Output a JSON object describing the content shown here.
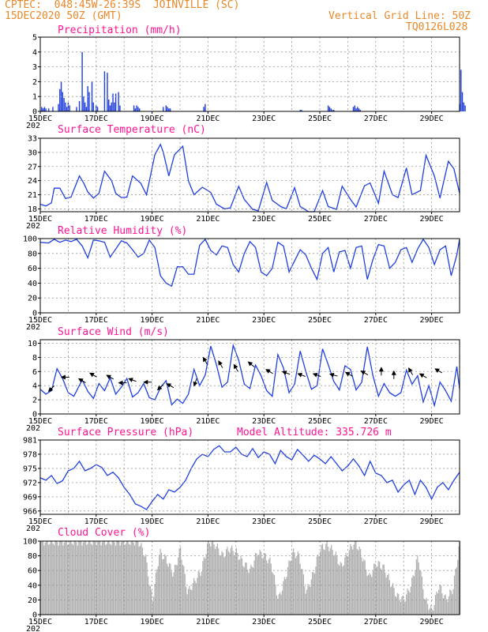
{
  "header": {
    "line1_left": "CPTEC:  048:45W-26:39S  JOINVILLE (SC)",
    "line2_left": "15DEC2020 50Z (GMT)",
    "line1_right": "Vertical Grid Line: 50Z",
    "line2_right": "TQ0126L028"
  },
  "x_axis": {
    "labels": [
      "15DEC",
      "17DEC",
      "19DEC",
      "21DEC",
      "23DEC",
      "25DEC",
      "27DEC",
      "29DEC"
    ],
    "year_fragment": "202"
  },
  "colors": {
    "line": "#1f3fe0",
    "bar": "#1f3fe0",
    "cloud": "#b0b0b0",
    "title": "#ff1493",
    "header": "#e8882a"
  },
  "chart_data": [
    {
      "id": "precip",
      "type": "bar",
      "title": "Precipitation (mm/h)",
      "ylim": [
        0,
        5
      ],
      "yticks": [
        0,
        1,
        2,
        3,
        4,
        5
      ],
      "x_range_days": [
        0,
        15
      ],
      "x_points_days": [
        0.05,
        0.1,
        0.15,
        0.2,
        0.3,
        0.45,
        0.65,
        0.7,
        0.75,
        0.8,
        0.85,
        0.9,
        0.95,
        1.0,
        1.05,
        1.3,
        1.4,
        1.5,
        1.55,
        1.6,
        1.65,
        1.7,
        1.75,
        1.85,
        1.9,
        2.0,
        2.05,
        2.3,
        2.4,
        2.45,
        2.5,
        2.55,
        2.6,
        2.65,
        2.7,
        2.8,
        2.85,
        3.35,
        3.4,
        3.45,
        3.5,
        3.55,
        4.4,
        4.5,
        4.55,
        4.6,
        4.65,
        5.85,
        5.9,
        9.3,
        9.35,
        10.3,
        10.35,
        10.4,
        10.45,
        10.5,
        11.2,
        11.25,
        11.3,
        11.35,
        11.4,
        11.45,
        15.0,
        15.05,
        15.1,
        15.15,
        15.2
      ],
      "values": [
        0.3,
        0.2,
        0.3,
        0.2,
        0.2,
        0.3,
        0.5,
        1.5,
        2.0,
        1.3,
        0.9,
        0.6,
        0.3,
        0.6,
        0.4,
        0.3,
        0.7,
        4.0,
        1.0,
        0.6,
        0.3,
        1.7,
        1.3,
        2.0,
        0.6,
        0.4,
        0.3,
        2.7,
        2.6,
        0.8,
        0.4,
        0.6,
        1.2,
        0.6,
        1.2,
        1.3,
        0.4,
        0.4,
        0.2,
        0.4,
        0.3,
        0.2,
        0.3,
        0.4,
        0.3,
        0.2,
        0.2,
        0.3,
        0.5,
        0.1,
        0.1,
        0.4,
        0.3,
        0.2,
        0.1,
        0.1,
        0.3,
        0.4,
        0.2,
        0.3,
        0.2,
        0.1,
        0.5,
        2.8,
        1.3,
        0.6,
        0.4
      ]
    },
    {
      "id": "temp",
      "type": "line",
      "title": "Surface Temperature (nC)",
      "ylim": [
        17.4,
        33
      ],
      "yticks": [
        18,
        21,
        24,
        27,
        30,
        33
      ],
      "x_range_days": [
        0,
        15
      ],
      "x": [
        0,
        0.2,
        0.4,
        0.5,
        0.7,
        0.9,
        1.1,
        1.4,
        1.55,
        1.7,
        1.9,
        2.1,
        2.3,
        2.55,
        2.7,
        2.9,
        3.1,
        3.3,
        3.6,
        3.8,
        4.1,
        4.3,
        4.4,
        4.6,
        4.8,
        5.1,
        5.3,
        5.5,
        5.8,
        6.1,
        6.3,
        6.6,
        6.8,
        7.1,
        7.3,
        7.6,
        7.8,
        8.1,
        8.3,
        8.6,
        8.8,
        9.1,
        9.3,
        9.6,
        9.8,
        10.1,
        10.3,
        10.6,
        10.8,
        11.1,
        11.3,
        11.6,
        11.8,
        12.1,
        12.3,
        12.6,
        12.8,
        13.1,
        13.3,
        13.6,
        13.8,
        14.1,
        14.3,
        14.6,
        14.8,
        15.0
      ],
      "values": [
        19.0,
        18.6,
        19.3,
        22.4,
        22.4,
        20.2,
        20.5,
        25.0,
        23.5,
        21.6,
        20.3,
        21.3,
        26.0,
        24.0,
        21.3,
        20.4,
        20.5,
        25.0,
        23.4,
        21.0,
        29.5,
        31.7,
        30.0,
        25.0,
        29.5,
        31.3,
        24.0,
        21.0,
        22.6,
        21.5,
        19.0,
        18.0,
        18.2,
        22.8,
        20.0,
        17.9,
        17.6,
        23.6,
        19.8,
        18.5,
        18.0,
        22.5,
        18.5,
        17.4,
        17.4,
        21.9,
        18.5,
        17.9,
        22.8,
        20.0,
        18.4,
        22.9,
        23.5,
        19.2,
        26.0,
        21.0,
        20.4,
        26.7,
        21.0,
        21.9,
        29.4,
        25.0,
        20.3,
        28.1,
        26.5,
        21.3
      ]
    },
    {
      "id": "rh",
      "type": "line",
      "title": "Relative Humidity (%)",
      "ylim": [
        0,
        100
      ],
      "yticks": [
        0,
        20,
        40,
        60,
        80,
        100
      ],
      "x_range_days": [
        0,
        15
      ],
      "x": [
        0,
        0.3,
        0.5,
        0.7,
        0.9,
        1.1,
        1.3,
        1.5,
        1.7,
        1.9,
        2.1,
        2.3,
        2.5,
        2.7,
        2.9,
        3.1,
        3.3,
        3.5,
        3.7,
        3.9,
        4.1,
        4.3,
        4.5,
        4.7,
        4.9,
        5.1,
        5.3,
        5.5,
        5.7,
        5.9,
        6.1,
        6.3,
        6.5,
        6.7,
        6.9,
        7.1,
        7.3,
        7.5,
        7.7,
        7.9,
        8.1,
        8.3,
        8.5,
        8.7,
        8.9,
        9.1,
        9.3,
        9.5,
        9.7,
        9.9,
        10.1,
        10.3,
        10.5,
        10.7,
        10.9,
        11.1,
        11.3,
        11.5,
        11.7,
        11.9,
        12.1,
        12.3,
        12.5,
        12.7,
        12.9,
        13.1,
        13.3,
        13.5,
        13.7,
        13.9,
        14.1,
        14.3,
        14.5,
        14.7,
        14.9,
        15.0
      ],
      "values": [
        95,
        94,
        99,
        95,
        98,
        96,
        99,
        90,
        74,
        98,
        97,
        95,
        75,
        86,
        97,
        94,
        85,
        75,
        80,
        98,
        88,
        50,
        40,
        36,
        62,
        62,
        52,
        52,
        91,
        99,
        84,
        78,
        90,
        88,
        65,
        55,
        80,
        96,
        88,
        55,
        50,
        60,
        95,
        90,
        55,
        70,
        85,
        78,
        60,
        45,
        80,
        88,
        55,
        82,
        84,
        60,
        88,
        90,
        45,
        72,
        92,
        90,
        60,
        68,
        85,
        88,
        68,
        86,
        99,
        88,
        65,
        85,
        90,
        50,
        78,
        99
      ]
    },
    {
      "id": "wind",
      "type": "line",
      "title": "Surface Wind (m/s)",
      "ylim": [
        0,
        10.5
      ],
      "yticks": [
        0,
        2,
        4,
        6,
        8,
        10
      ],
      "x_range_days": [
        0,
        15
      ],
      "x": [
        0,
        0.2,
        0.4,
        0.6,
        0.8,
        1.0,
        1.2,
        1.5,
        1.7,
        1.9,
        2.1,
        2.3,
        2.5,
        2.7,
        2.9,
        3.1,
        3.3,
        3.5,
        3.7,
        3.9,
        4.1,
        4.3,
        4.5,
        4.7,
        4.9,
        5.1,
        5.3,
        5.5,
        5.7,
        5.9,
        6.1,
        6.3,
        6.5,
        6.7,
        6.9,
        7.1,
        7.3,
        7.5,
        7.7,
        7.9,
        8.1,
        8.3,
        8.5,
        8.7,
        8.9,
        9.1,
        9.3,
        9.5,
        9.7,
        9.9,
        10.1,
        10.3,
        10.5,
        10.7,
        10.9,
        11.1,
        11.3,
        11.5,
        11.7,
        11.9,
        12.1,
        12.3,
        12.5,
        12.7,
        12.9,
        13.1,
        13.3,
        13.5,
        13.7,
        13.9,
        14.1,
        14.3,
        14.5,
        14.7,
        14.9,
        15.0
      ],
      "values": [
        3.5,
        2.8,
        3.3,
        6.4,
        5.0,
        3.0,
        2.5,
        4.8,
        3.2,
        2.2,
        4.3,
        3.3,
        5.1,
        2.8,
        3.8,
        5.0,
        2.4,
        3.0,
        4.3,
        2.3,
        2.0,
        3.7,
        4.7,
        1.3,
        2.1,
        1.5,
        2.8,
        6.3,
        4.0,
        5.5,
        9.6,
        7.0,
        3.8,
        4.5,
        9.7,
        7.6,
        4.2,
        3.6,
        6.9,
        5.4,
        3.3,
        2.5,
        8.4,
        6.5,
        3.0,
        4.2,
        8.9,
        6.0,
        3.5,
        4.0,
        9.2,
        7.0,
        4.6,
        3.4,
        6.8,
        6.3,
        3.4,
        4.5,
        9.5,
        5.4,
        2.5,
        4.3,
        3.0,
        2.5,
        3.0,
        6.2,
        4.2,
        5.4,
        1.7,
        4.0,
        1.2,
        4.5,
        3.3,
        1.8,
        6.7,
        3.5
      ],
      "arrows": [
        {
          "day": 0.4,
          "speed": 3.6,
          "dir_deg": 225
        },
        {
          "day": 0.9,
          "speed": 5.2,
          "dir_deg": 270
        },
        {
          "day": 1.5,
          "speed": 4.7,
          "dir_deg": 300
        },
        {
          "day": 1.9,
          "speed": 5.5,
          "dir_deg": 300
        },
        {
          "day": 2.5,
          "speed": 5.2,
          "dir_deg": 300
        },
        {
          "day": 2.95,
          "speed": 4.4,
          "dir_deg": 270
        },
        {
          "day": 3.3,
          "speed": 4.8,
          "dir_deg": 290
        },
        {
          "day": 3.85,
          "speed": 4.5,
          "dir_deg": 270
        },
        {
          "day": 4.3,
          "speed": 3.8,
          "dir_deg": 225
        },
        {
          "day": 4.65,
          "speed": 4.0,
          "dir_deg": 300
        },
        {
          "day": 5.55,
          "speed": 4.5,
          "dir_deg": 200
        },
        {
          "day": 5.9,
          "speed": 7.5,
          "dir_deg": 330
        },
        {
          "day": 6.45,
          "speed": 7.0,
          "dir_deg": 330
        },
        {
          "day": 7.0,
          "speed": 6.5,
          "dir_deg": 330
        },
        {
          "day": 7.55,
          "speed": 7.0,
          "dir_deg": 310
        },
        {
          "day": 8.2,
          "speed": 6.0,
          "dir_deg": 300
        },
        {
          "day": 8.8,
          "speed": 5.8,
          "dir_deg": 290
        },
        {
          "day": 9.35,
          "speed": 5.5,
          "dir_deg": 290
        },
        {
          "day": 9.9,
          "speed": 5.5,
          "dir_deg": 290
        },
        {
          "day": 10.5,
          "speed": 5.5,
          "dir_deg": 285
        },
        {
          "day": 11.05,
          "speed": 5.6,
          "dir_deg": 300
        },
        {
          "day": 11.6,
          "speed": 5.8,
          "dir_deg": 300
        },
        {
          "day": 12.2,
          "speed": 6.0,
          "dir_deg": 0
        },
        {
          "day": 12.65,
          "speed": 5.5,
          "dir_deg": 0
        },
        {
          "day": 13.25,
          "speed": 6.0,
          "dir_deg": 330
        },
        {
          "day": 13.7,
          "speed": 5.4,
          "dir_deg": 300
        },
        {
          "day": 14.25,
          "speed": 6.1,
          "dir_deg": 300
        }
      ]
    },
    {
      "id": "press",
      "type": "line",
      "title": "Surface Pressure (hPa)",
      "annotation": "Model Altitude: 335.726 m",
      "ylim": [
        965.3,
        981
      ],
      "yticks": [
        966,
        969,
        972,
        975,
        978,
        981
      ],
      "x_range_days": [
        0,
        15
      ],
      "x": [
        0,
        0.2,
        0.4,
        0.6,
        0.8,
        1.0,
        1.2,
        1.4,
        1.6,
        1.8,
        2.0,
        2.2,
        2.4,
        2.6,
        2.8,
        3.0,
        3.2,
        3.4,
        3.6,
        3.8,
        4.0,
        4.2,
        4.4,
        4.6,
        4.8,
        5.0,
        5.2,
        5.4,
        5.6,
        5.8,
        6.0,
        6.2,
        6.4,
        6.6,
        6.8,
        7.0,
        7.2,
        7.4,
        7.6,
        7.8,
        8.0,
        8.2,
        8.4,
        8.6,
        8.8,
        9.0,
        9.2,
        9.4,
        9.6,
        9.8,
        10.0,
        10.2,
        10.4,
        10.6,
        10.8,
        11.0,
        11.2,
        11.4,
        11.6,
        11.8,
        12.0,
        12.2,
        12.4,
        12.6,
        12.8,
        13.0,
        13.2,
        13.4,
        13.6,
        13.8,
        14.0,
        14.2,
        14.4,
        14.6,
        14.8,
        15.0
      ],
      "values": [
        973.0,
        972.5,
        973.5,
        971.8,
        972.4,
        974.5,
        975.0,
        976.5,
        974.5,
        975.0,
        975.8,
        975.2,
        973.5,
        974.2,
        973.0,
        971.0,
        969.5,
        967.5,
        967.0,
        966.3,
        968.0,
        969.5,
        968.5,
        970.5,
        970.0,
        971.0,
        972.5,
        975.0,
        977.0,
        978.0,
        977.5,
        979.0,
        979.8,
        978.5,
        978.5,
        979.5,
        978.0,
        977.5,
        979.2,
        977.3,
        978.5,
        978.0,
        976.0,
        978.8,
        977.5,
        976.8,
        979.0,
        977.8,
        976.5,
        977.8,
        977.0,
        976.0,
        977.5,
        976.0,
        974.5,
        975.5,
        977.0,
        975.5,
        973.5,
        976.5,
        974.0,
        973.5,
        972.0,
        972.5,
        970.0,
        971.5,
        972.5,
        969.5,
        972.5,
        971.0,
        968.5,
        971.0,
        972.0,
        970.5,
        972.5,
        974.2
      ]
    },
    {
      "id": "cloud",
      "type": "area",
      "title": "Cloud Cover (%)",
      "ylim": [
        0,
        100
      ],
      "yticks": [
        0,
        20,
        40,
        60,
        80,
        100
      ],
      "x_range_days": [
        0,
        15
      ],
      "x": [
        0,
        0.25,
        0.5,
        0.75,
        1.0,
        1.25,
        1.5,
        1.75,
        2.0,
        2.25,
        2.5,
        2.75,
        3.0,
        3.25,
        3.5,
        3.75,
        3.9,
        4.0,
        4.25,
        4.5,
        4.75,
        5.0,
        5.25,
        5.5,
        5.75,
        6.0,
        6.25,
        6.5,
        6.75,
        7.0,
        7.25,
        7.5,
        7.75,
        8.0,
        8.25,
        8.5,
        8.75,
        9.0,
        9.25,
        9.5,
        9.75,
        10.0,
        10.25,
        10.5,
        10.75,
        11.0,
        11.25,
        11.5,
        11.75,
        12.0,
        12.25,
        12.5,
        12.75,
        13.0,
        13.25,
        13.5,
        13.75,
        14.0,
        14.25,
        14.5,
        14.75,
        15.0
      ],
      "values": [
        100,
        100,
        100,
        100,
        100,
        100,
        100,
        100,
        100,
        100,
        100,
        100,
        100,
        100,
        100,
        80,
        40,
        20,
        85,
        75,
        55,
        90,
        30,
        45,
        60,
        100,
        95,
        80,
        90,
        85,
        70,
        60,
        85,
        80,
        70,
        20,
        50,
        85,
        80,
        30,
        55,
        90,
        95,
        85,
        65,
        85,
        100,
        80,
        50,
        70,
        65,
        45,
        25,
        20,
        40,
        80,
        20,
        5,
        40,
        20,
        35,
        100
      ]
    }
  ]
}
